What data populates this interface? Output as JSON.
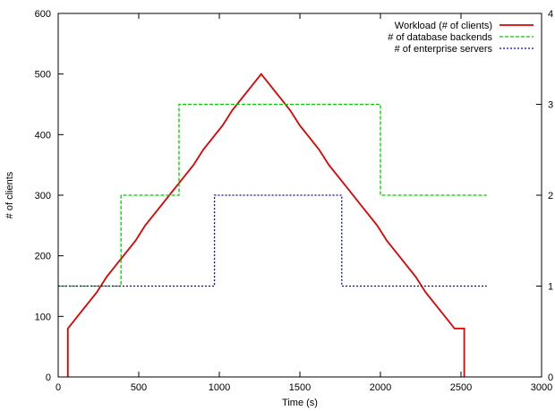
{
  "chart_data": {
    "type": "line",
    "step": true,
    "xlabel": "Time (s)",
    "ylabel": "# of clients",
    "xlim": [
      0,
      3000
    ],
    "ylim": [
      0,
      600
    ],
    "y2lim": [
      0,
      4
    ],
    "xticks": [
      "0",
      "500",
      "1000",
      "1500",
      "2000",
      "2500",
      "3000"
    ],
    "yticks": [
      "0",
      "100",
      "200",
      "300",
      "400",
      "500",
      "600"
    ],
    "y2ticks": [
      "0",
      "1",
      "2",
      "3",
      "4"
    ],
    "grid": false,
    "legend_position": "top-right",
    "series": [
      {
        "name": "Workload (# of clients)",
        "color": "#e00000",
        "dash": "solid",
        "axis": "left",
        "x": [
          60,
          60,
          120,
          180,
          240,
          300,
          360,
          420,
          480,
          540,
          600,
          660,
          720,
          780,
          840,
          900,
          960,
          1020,
          1080,
          1140,
          1200,
          1260,
          1320,
          1380,
          1440,
          1500,
          1560,
          1620,
          1680,
          1740,
          1800,
          1860,
          1920,
          1980,
          2040,
          2100,
          2160,
          2220,
          2280,
          2340,
          2400,
          2460,
          2520,
          2520
        ],
        "y": [
          0,
          80,
          100,
          120,
          140,
          165,
          185,
          205,
          225,
          250,
          270,
          290,
          310,
          330,
          350,
          375,
          395,
          415,
          440,
          460,
          480,
          500,
          480,
          460,
          440,
          415,
          395,
          375,
          350,
          330,
          310,
          290,
          270,
          250,
          225,
          205,
          185,
          165,
          140,
          120,
          100,
          80,
          80,
          0
        ]
      },
      {
        "name": "# of database backends",
        "color": "#00cc00",
        "dash": "dashed",
        "axis": "right",
        "x": [
          0,
          390,
          390,
          750,
          750,
          2000,
          2000,
          2660
        ],
        "y": [
          1,
          1,
          2,
          2,
          3,
          3,
          2,
          2
        ]
      },
      {
        "name": "# of enterprise servers",
        "color": "#0000dd",
        "dash": "dotted",
        "axis": "right",
        "x": [
          0,
          970,
          970,
          1760,
          1760,
          2660
        ],
        "y": [
          1,
          1,
          2,
          2,
          1,
          1
        ]
      }
    ]
  }
}
